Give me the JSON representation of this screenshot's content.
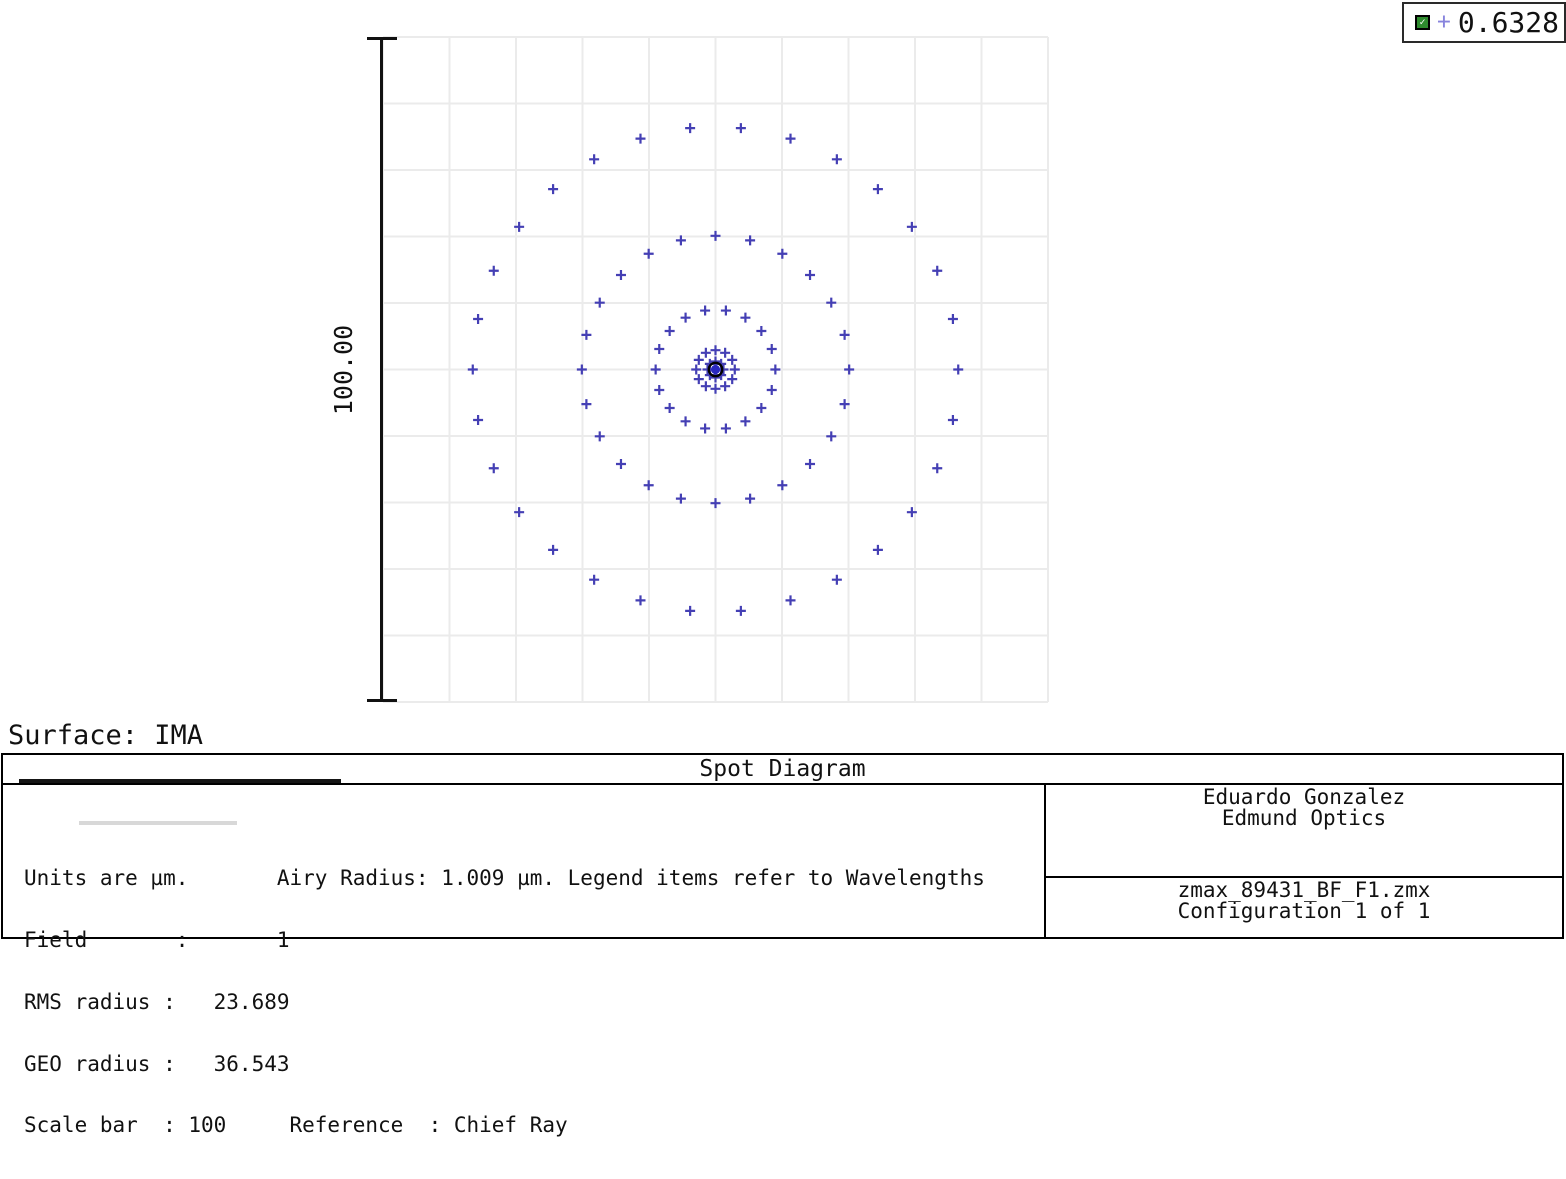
{
  "legend": {
    "checkbox_checked": true,
    "marker_symbol": "+",
    "wavelength_value": "0.6328",
    "marker_color": "#8884dd"
  },
  "plot": {
    "scale_label": "100.00",
    "surface_label": "Surface: IMA"
  },
  "chart_data": {
    "type": "scatter",
    "title": "Spot Diagram",
    "units": "µm",
    "pattern": "hexapolar rings of + markers centered on chief ray",
    "wavelength_um": 0.6328,
    "field": 1,
    "airy_radius_um": 1.009,
    "rms_radius_um": 23.689,
    "geo_radius_um": 36.543,
    "scale_bar_um": 100,
    "reference": "Chief Ray",
    "grid": {
      "cells": 10,
      "cell_size_um": 10,
      "span_um": 100,
      "gridline_color": "#ebebeb"
    },
    "marker_color": "#443fb4",
    "airy_circle_color": "#000000",
    "center_dot_color": "#2a28c0",
    "center": {
      "x_um": 0.0,
      "y_um": 0.0
    },
    "rings": [
      {
        "radius_um": 1.2,
        "n_points": 8,
        "start_angle_deg": 0
      },
      {
        "radius_um": 2.9,
        "n_points": 12,
        "start_angle_deg": 0
      },
      {
        "radius_um": 9.0,
        "n_points": 18,
        "start_angle_deg": 0
      },
      {
        "radius_um": 20.1,
        "n_points": 24,
        "start_angle_deg": 0
      },
      {
        "radius_um": 36.5,
        "n_points": 30,
        "start_angle_deg": 0
      }
    ]
  },
  "footer": {
    "title": "Spot Diagram",
    "info_lines": [
      "Units are µm.       Airy Radius: 1.009 µm. Legend items refer to Wavelengths",
      "Field       :       1",
      "RMS radius :   23.689",
      "GEO radius :   36.543",
      "Scale bar  : 100     Reference  : Chief Ray"
    ],
    "author": "Eduardo Gonzalez",
    "company": "Edmund Optics",
    "file_name": "zmax_89431_BF_F1.zmx",
    "configuration": "Configuration 1 of 1"
  }
}
